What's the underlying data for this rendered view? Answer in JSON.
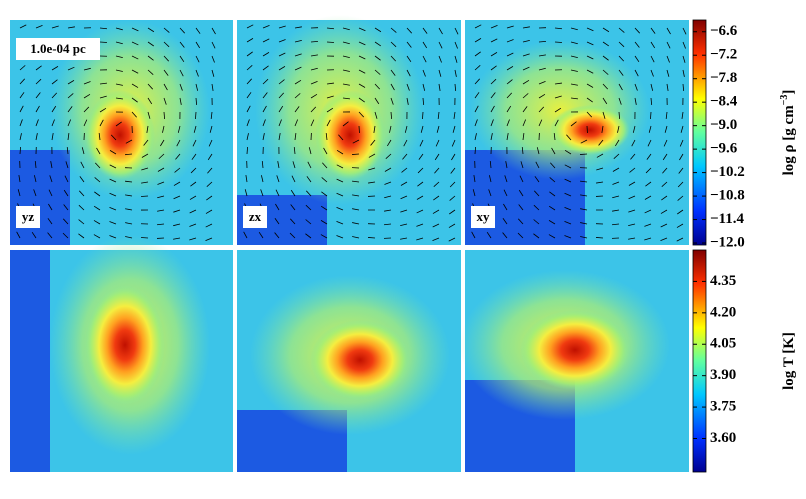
{
  "scale_label": "1.0e-04 pc",
  "panel_labels": [
    "yz",
    "zx",
    "xy"
  ],
  "colorbars": [
    {
      "label_parts": [
        "log ρ [g cm",
        "−3",
        "]"
      ],
      "lim": [
        -12.05,
        -6.3
      ],
      "ticks": [
        {
          "value": -6.6,
          "label": "−6.6"
        },
        {
          "value": -7.2,
          "label": "−7.2"
        },
        {
          "value": -7.8,
          "label": "−7.8"
        },
        {
          "value": -8.4,
          "label": "−8.4"
        },
        {
          "value": -9.0,
          "label": "−9.0"
        },
        {
          "value": -9.6,
          "label": "−9.6"
        },
        {
          "value": -10.2,
          "label": "−10.2"
        },
        {
          "value": -10.8,
          "label": "−10.8"
        },
        {
          "value": -11.4,
          "label": "−11.4"
        },
        {
          "value": -12.0,
          "label": "−12.0"
        }
      ]
    },
    {
      "label_parts": [
        "log T [K]"
      ],
      "lim": [
        3.44,
        4.5
      ],
      "ticks": [
        {
          "value": 4.35,
          "label": "4.35"
        },
        {
          "value": 4.2,
          "label": "4.20"
        },
        {
          "value": 4.05,
          "label": "4.05"
        },
        {
          "value": 3.9,
          "label": "3.90"
        },
        {
          "value": 3.75,
          "label": "3.75"
        },
        {
          "value": 3.6,
          "label": "3.60"
        }
      ]
    }
  ]
}
